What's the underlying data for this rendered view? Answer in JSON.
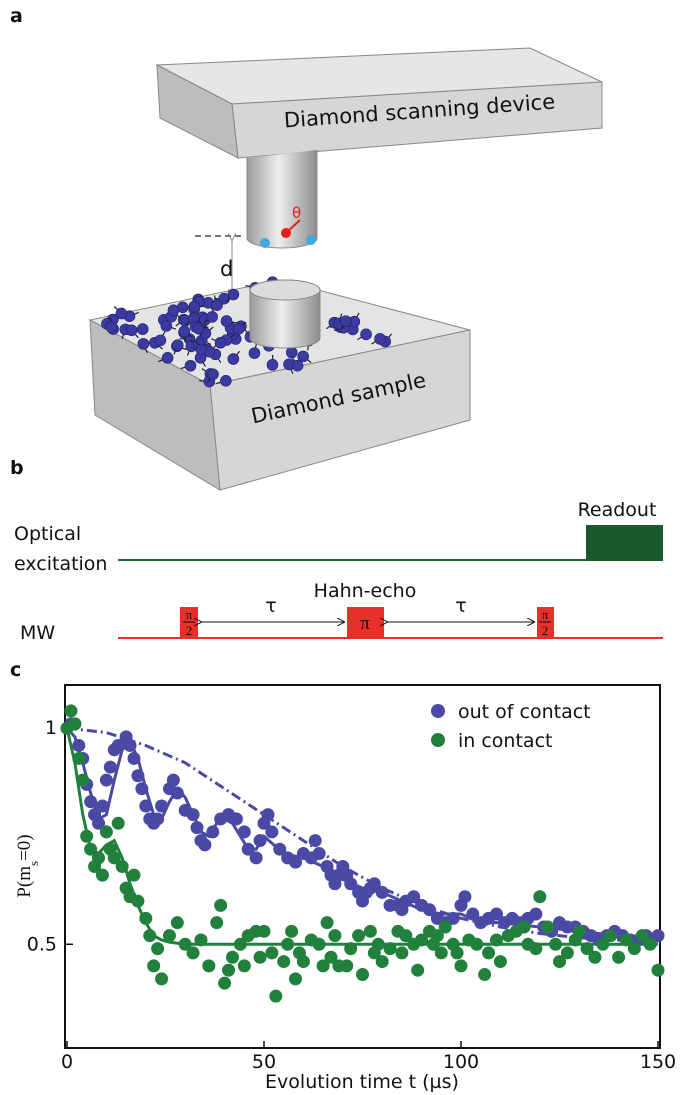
{
  "panel_a": {
    "label": "a",
    "device": "Diamond scanning device",
    "angle": "θ",
    "distance": "d",
    "sample": "Diamond sample"
  },
  "panel_b": {
    "label": "b",
    "optical": [
      "Optical",
      "excitation"
    ],
    "readout": "Readout",
    "hahn_echo": "Hahn-echo",
    "mw": "MW",
    "tau": [
      "τ",
      "τ"
    ],
    "pulses": [
      {
        "numerator": "π",
        "denominator": "2"
      },
      {
        "symbol": "π"
      },
      {
        "numerator": "π",
        "denominator": "2"
      }
    ]
  },
  "chart_data": {
    "type": "scatter",
    "panel_label": "c",
    "xlabel": "Evolution time t (µs)",
    "ylabel": [
      "P(m",
      "s",
      "=0)"
    ],
    "xlim": [
      0,
      150
    ],
    "xticks": [
      0,
      50,
      100,
      150
    ],
    "ylim": [
      0.26,
      1.1
    ],
    "yticks": [
      0.5,
      1
    ],
    "legend": "upper right",
    "series": [
      {
        "name": "out of contact",
        "color": "#4a4aa6",
        "x": [
          0,
          1,
          2,
          3,
          4,
          5,
          6,
          7,
          8,
          9,
          10,
          11,
          12,
          13,
          15,
          16,
          17,
          18,
          19,
          20,
          21,
          22,
          23,
          24,
          26,
          27,
          28,
          30,
          32,
          33,
          34,
          35,
          37,
          39,
          41,
          43,
          45,
          46,
          48,
          49,
          50,
          51,
          52,
          54,
          56,
          58,
          60,
          62,
          63,
          64,
          66,
          67,
          68,
          69,
          70,
          71,
          72,
          74,
          75,
          76,
          77,
          78,
          80,
          82,
          84,
          85,
          86,
          88,
          90,
          92,
          94,
          96,
          98,
          100,
          101,
          103,
          105,
          107,
          109,
          111,
          113,
          115,
          117,
          119,
          121,
          123,
          125,
          127,
          129,
          131,
          133,
          135,
          137,
          139,
          141,
          143,
          145,
          147,
          150
        ],
        "values": [
          1.0,
          1.01,
          1.01,
          0.96,
          0.93,
          0.87,
          0.83,
          0.8,
          0.78,
          0.82,
          0.88,
          0.91,
          0.95,
          0.96,
          0.98,
          0.96,
          0.93,
          0.89,
          0.86,
          0.82,
          0.79,
          0.78,
          0.79,
          0.82,
          0.86,
          0.88,
          0.85,
          0.81,
          0.8,
          0.77,
          0.74,
          0.73,
          0.76,
          0.79,
          0.8,
          0.79,
          0.76,
          0.72,
          0.7,
          0.74,
          0.78,
          0.8,
          0.76,
          0.72,
          0.7,
          0.69,
          0.71,
          0.7,
          0.74,
          0.71,
          0.68,
          0.66,
          0.64,
          0.66,
          0.68,
          0.66,
          0.64,
          0.62,
          0.6,
          0.62,
          0.63,
          0.64,
          0.62,
          0.59,
          0.59,
          0.58,
          0.6,
          0.61,
          0.59,
          0.58,
          0.56,
          0.55,
          0.56,
          0.59,
          0.61,
          0.57,
          0.55,
          0.56,
          0.57,
          0.55,
          0.56,
          0.55,
          0.56,
          0.57,
          0.54,
          0.53,
          0.55,
          0.54,
          0.54,
          0.53,
          0.52,
          0.51,
          0.52,
          0.53,
          0.52,
          0.51,
          0.51,
          0.52,
          0.52
        ]
      },
      {
        "name": "in contact",
        "color": "#21803c",
        "x": [
          0,
          1,
          2,
          3,
          4,
          5,
          6,
          7,
          8,
          9,
          10,
          11,
          12,
          13,
          14,
          15,
          16,
          17,
          18,
          20,
          21,
          22,
          23,
          24,
          26,
          28,
          30,
          32,
          34,
          36,
          38,
          39,
          40,
          41,
          42,
          44,
          45,
          46,
          48,
          49,
          50,
          52,
          53,
          55,
          56,
          57,
          58,
          59,
          60,
          62,
          64,
          65,
          66,
          67,
          68,
          69,
          71,
          72,
          74,
          75,
          77,
          78,
          79,
          80,
          82,
          84,
          85,
          86,
          88,
          89,
          90,
          92,
          93,
          94,
          95,
          96,
          98,
          99,
          100,
          102,
          104,
          106,
          107,
          109,
          110,
          112,
          114,
          116,
          117,
          119,
          120,
          122,
          124,
          125,
          127,
          129,
          130,
          132,
          134,
          136,
          138,
          140,
          142,
          144,
          146,
          148,
          150
        ],
        "values": [
          1.0,
          1.04,
          1.01,
          0.93,
          0.88,
          0.75,
          0.72,
          0.68,
          0.7,
          0.66,
          0.76,
          0.72,
          0.7,
          0.78,
          0.68,
          0.63,
          0.61,
          0.66,
          0.6,
          0.56,
          0.52,
          0.45,
          0.49,
          0.42,
          0.52,
          0.55,
          0.5,
          0.48,
          0.51,
          0.45,
          0.55,
          0.59,
          0.41,
          0.44,
          0.47,
          0.5,
          0.45,
          0.52,
          0.53,
          0.47,
          0.53,
          0.48,
          0.38,
          0.46,
          0.5,
          0.53,
          0.42,
          0.48,
          0.46,
          0.51,
          0.5,
          0.45,
          0.55,
          0.47,
          0.52,
          0.45,
          0.45,
          0.49,
          0.52,
          0.43,
          0.53,
          0.48,
          0.5,
          0.46,
          0.49,
          0.53,
          0.48,
          0.52,
          0.5,
          0.44,
          0.51,
          0.53,
          0.5,
          0.52,
          0.48,
          0.54,
          0.5,
          0.48,
          0.45,
          0.51,
          0.5,
          0.43,
          0.48,
          0.51,
          0.46,
          0.52,
          0.53,
          0.54,
          0.5,
          0.49,
          0.61,
          0.54,
          0.5,
          0.46,
          0.48,
          0.51,
          0.53,
          0.49,
          0.47,
          0.5,
          0.52,
          0.47,
          0.51,
          0.49,
          0.52,
          0.5,
          0.44
        ]
      }
    ],
    "lines": [
      {
        "color": "#4a4aa6",
        "style": "solid",
        "x": [
          0,
          2,
          4,
          6,
          8,
          10,
          12,
          14,
          16,
          18,
          20,
          22,
          24,
          26,
          28,
          30,
          32,
          34,
          36,
          38,
          40,
          42,
          44,
          46,
          48,
          50,
          55,
          60,
          65,
          70,
          75,
          80,
          85,
          90,
          95,
          100,
          105,
          110,
          120,
          130,
          140,
          150
        ],
        "values": [
          1.0,
          0.98,
          0.92,
          0.85,
          0.79,
          0.8,
          0.88,
          0.95,
          0.97,
          0.93,
          0.86,
          0.8,
          0.79,
          0.83,
          0.86,
          0.84,
          0.8,
          0.76,
          0.75,
          0.78,
          0.79,
          0.78,
          0.75,
          0.72,
          0.72,
          0.75,
          0.71,
          0.7,
          0.68,
          0.65,
          0.63,
          0.62,
          0.6,
          0.58,
          0.57,
          0.57,
          0.55,
          0.55,
          0.54,
          0.53,
          0.52,
          0.51
        ]
      },
      {
        "color": "#21803c",
        "style": "solid",
        "x": [
          0,
          2,
          4,
          6,
          8,
          10,
          12,
          14,
          16,
          18,
          20,
          22,
          24,
          26,
          30,
          40,
          60,
          80,
          100,
          150
        ],
        "values": [
          1.0,
          0.92,
          0.8,
          0.72,
          0.71,
          0.73,
          0.74,
          0.7,
          0.64,
          0.59,
          0.55,
          0.52,
          0.51,
          0.505,
          0.5,
          0.5,
          0.5,
          0.5,
          0.5,
          0.5
        ]
      },
      {
        "color": "#4a4aa6",
        "style": "dashdot",
        "x": [
          0,
          10,
          20,
          30,
          40,
          50,
          60,
          70,
          80,
          90,
          100,
          110,
          120,
          130,
          140,
          150
        ],
        "values": [
          1.0,
          0.99,
          0.96,
          0.92,
          0.86,
          0.8,
          0.74,
          0.68,
          0.63,
          0.59,
          0.56,
          0.54,
          0.525,
          0.515,
          0.51,
          0.505
        ]
      }
    ]
  }
}
